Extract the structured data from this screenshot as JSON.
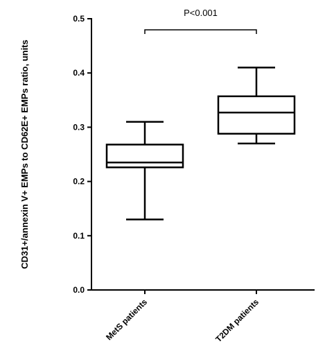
{
  "chart_data": {
    "type": "box",
    "title": "",
    "xlabel": "",
    "ylabel": "CD31+/annexin V+ EMPs to CD62E+ EMPs ratio, units",
    "ylim": [
      0,
      0.5
    ],
    "yticks": [
      "0.0",
      "0.1",
      "0.2",
      "0.3",
      "0.4",
      "0.5"
    ],
    "grid": false,
    "categories": [
      "MetS patients",
      "T2DM patients"
    ],
    "boxes": [
      {
        "name": "MetS patients",
        "min": 0.13,
        "q1": 0.226,
        "median": 0.235,
        "q3": 0.268,
        "max": 0.31
      },
      {
        "name": "T2DM patients",
        "min": 0.27,
        "q1": 0.288,
        "median": 0.327,
        "q3": 0.357,
        "max": 0.41
      }
    ],
    "annotations": [
      {
        "text": "P<0.001",
        "between": [
          "MetS patients",
          "T2DM patients"
        ]
      }
    ]
  }
}
